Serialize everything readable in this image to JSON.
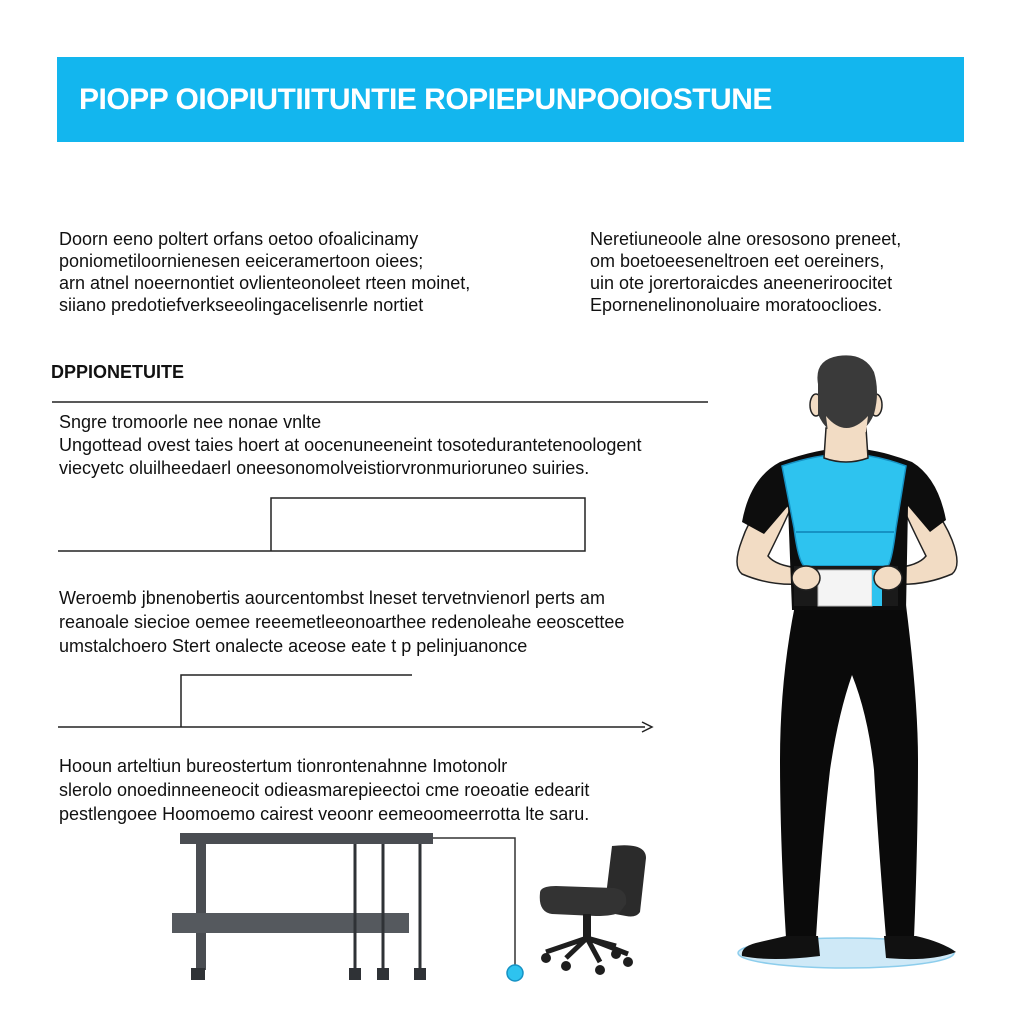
{
  "banner": {
    "title": "PIOPP OIOPIUTIITUNTIE  ROPIEPUNPOOIOSTUNE",
    "color": "#13b6ee"
  },
  "intro_left": {
    "lines": [
      "Doorn eeno poltert orfans oetoo ofoalicinamy",
      "poniometiloornienesen eeiceramertoon oiees;",
      "arn atnel noeernontiet ovlienteonoleet rteen moinet,",
      "siiano predotiefverkseeolingacelisenrle nortiet"
    ]
  },
  "intro_right": {
    "lines": [
      "Neretiuneoole alne oresosono preneet,",
      "om boetoeeseneltroen eet oereiners,",
      "uin ote jorertoraicdes aneeneriroocitet",
      "Epornenelinonoluaire moratooclioes."
    ]
  },
  "section": {
    "heading": "DPPIONETUITE"
  },
  "para_1": {
    "lines": [
      "Sngre tromoorle nee nonae vnlte",
      "Ungottead ovest taies hoert at oocenuneeneint tosotedurantetenoologent",
      "viecyetc oluilheedaerl oneesonomolveistiorvronmurioruneo suiries."
    ]
  },
  "para_2": {
    "lines": [
      "Weroemb jbnenobertis aourcentombst lneset tervetnvienorl perts am",
      "reanoale siecioe oemee reeemetleeonoarthee redenoleahe eeoscettee",
      "umstalchoero Stert onalecte aceose eate t p pelinjuanonce"
    ]
  },
  "para_3": {
    "lines": [
      "Hooun arteltiun bureostertum tionrontenahnne Imotonolr",
      "slerolo onoedinneeneocit odieasmarepieectoi cme roeoatie edearit",
      "pestlengoee  Hoomoemo cairest veoonr eemeoomeerrotta lte saru."
    ]
  },
  "palette": {
    "accent": "#13b6ee",
    "vest": "#2ec3ef",
    "ink": "#111111",
    "furniture": "#4a4d52",
    "chair": "#2b2b2b",
    "mat": "#cfe9f7"
  },
  "icons": {
    "figure": "person-back-view-icon",
    "desk": "standing-desk-icon",
    "chair": "office-chair-icon"
  }
}
